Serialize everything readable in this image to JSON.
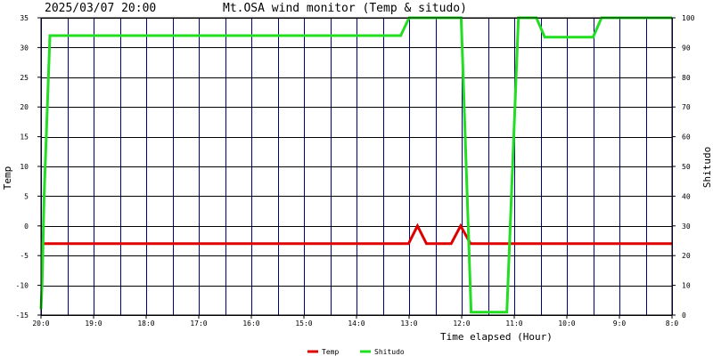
{
  "header": {
    "timestamp": "2025/03/07 20:00",
    "title": "Mt.OSA wind monitor (Temp & situdo)"
  },
  "chart_data": {
    "type": "line",
    "title": "Mt.OSA wind monitor (Temp & situdo)",
    "subtitle": "2025/03/07 20:00",
    "xlabel": "Time elapsed (Hour)",
    "ylabel_left": "Temp",
    "ylabel_right": "Shitudo",
    "x_direction": "hours elapsed, 20:00 at left descending to 8:00 at right",
    "xlim": [
      0,
      12
    ],
    "ylim_left": [
      -15,
      35
    ],
    "ylim_right": [
      0,
      100
    ],
    "x_ticks": [
      {
        "x": 0,
        "label": "20:0"
      },
      {
        "x": 1,
        "label": "19:0"
      },
      {
        "x": 2,
        "label": "18:0"
      },
      {
        "x": 3,
        "label": "17:0"
      },
      {
        "x": 4,
        "label": "16:0"
      },
      {
        "x": 5,
        "label": "15:0"
      },
      {
        "x": 6,
        "label": "14:0"
      },
      {
        "x": 7,
        "label": "13:0"
      },
      {
        "x": 8,
        "label": "12:0"
      },
      {
        "x": 9,
        "label": "11:0"
      },
      {
        "x": 10,
        "label": "10:0"
      },
      {
        "x": 11,
        "label": "9:0"
      },
      {
        "x": 12,
        "label": "8:0"
      }
    ],
    "y_ticks_left": [
      35,
      30,
      25,
      20,
      15,
      10,
      5,
      0,
      -5,
      -10,
      -15
    ],
    "y_ticks_right": [
      100,
      90,
      80,
      70,
      60,
      50,
      40,
      30,
      20,
      10,
      0
    ],
    "grid": true,
    "legend_position": "bottom-center",
    "series": [
      {
        "name": "Temp",
        "color": "#dd0000",
        "axis": "left",
        "points": [
          [
            0,
            -3
          ],
          [
            6.99,
            -3
          ],
          [
            7.16,
            0
          ],
          [
            7.33,
            -3
          ],
          [
            7.8,
            -3
          ],
          [
            7.98,
            0
          ],
          [
            8.17,
            -3
          ],
          [
            12,
            -3
          ]
        ]
      },
      {
        "name": "Shitudo",
        "color": "#22dd22",
        "axis": "right",
        "points": [
          [
            0,
            2
          ],
          [
            0.02,
            10
          ],
          [
            0.06,
            40
          ],
          [
            0.17,
            94
          ],
          [
            6.84,
            94
          ],
          [
            7.0,
            100
          ],
          [
            7.99,
            100
          ],
          [
            8.01,
            90
          ],
          [
            8.18,
            1
          ],
          [
            8.86,
            1
          ],
          [
            9.08,
            100
          ],
          [
            9.42,
            100
          ],
          [
            9.58,
            93.5
          ],
          [
            10.5,
            93.5
          ],
          [
            10.66,
            100
          ],
          [
            12,
            100
          ]
        ]
      }
    ]
  },
  "legend": {
    "items": [
      {
        "label": "Temp",
        "color": "#dd0000"
      },
      {
        "label": "Shitudo",
        "color": "#22dd22"
      }
    ]
  }
}
